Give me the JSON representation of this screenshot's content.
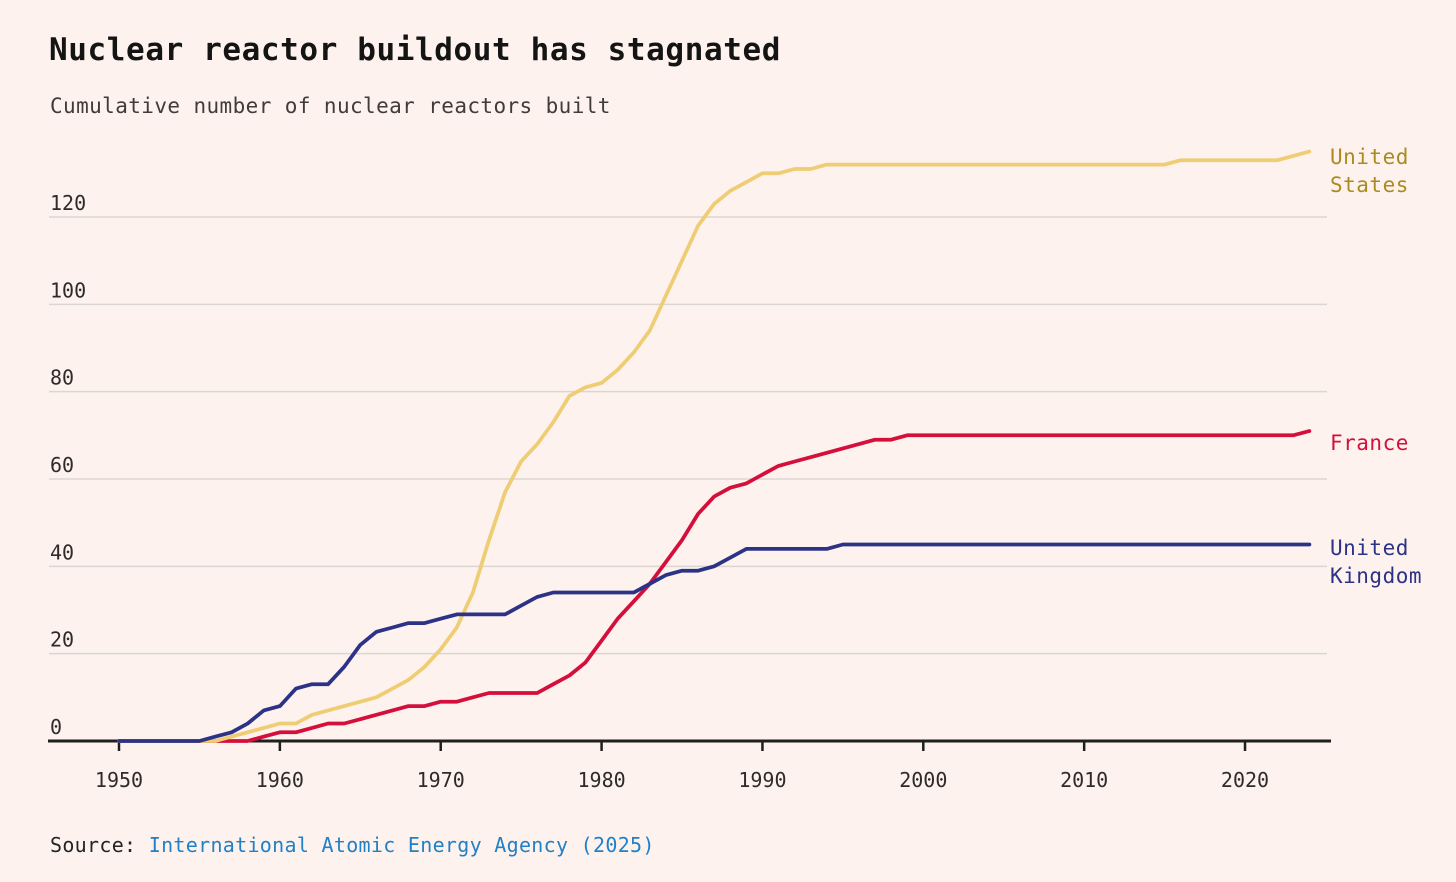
{
  "page": {
    "title": "Nuclear reactor buildout has stagnated",
    "subtitle": "Cumulative number of nuclear reactors built",
    "source_label": "Source:",
    "source_link_text": "International Atomic Energy Agency (2025)"
  },
  "colors": {
    "background": "#fdf2ee",
    "gridline": "#dbd6d1",
    "axis": "#1f1f1f",
    "tick_text": "#2e2b28",
    "title_text": "#141414",
    "link": "#2280c6"
  },
  "chart_data": {
    "type": "line",
    "title": "Nuclear reactor buildout has stagnated",
    "subtitle": "Cumulative number of nuclear reactors built",
    "xlabel": "",
    "ylabel": "Cumulative number of nuclear reactors built",
    "xlim": [
      1945.6,
      2025.4
    ],
    "ylim": [
      0,
      138
    ],
    "x_ticks": [
      1950,
      1960,
      1970,
      1980,
      1990,
      2000,
      2010,
      2020
    ],
    "y_ticks": [
      0,
      20,
      40,
      60,
      80,
      100,
      120
    ],
    "grid": "horizontal",
    "legend_position": "right-of-line-ends",
    "x": [
      1950,
      1951,
      1952,
      1953,
      1954,
      1955,
      1956,
      1957,
      1958,
      1959,
      1960,
      1961,
      1962,
      1963,
      1964,
      1965,
      1966,
      1967,
      1968,
      1969,
      1970,
      1971,
      1972,
      1973,
      1974,
      1975,
      1976,
      1977,
      1978,
      1979,
      1980,
      1981,
      1982,
      1983,
      1984,
      1985,
      1986,
      1987,
      1988,
      1989,
      1990,
      1991,
      1992,
      1993,
      1994,
      1995,
      1996,
      1997,
      1998,
      1999,
      2000,
      2001,
      2002,
      2003,
      2004,
      2005,
      2006,
      2007,
      2008,
      2009,
      2010,
      2011,
      2012,
      2013,
      2014,
      2015,
      2016,
      2017,
      2018,
      2019,
      2020,
      2021,
      2022,
      2023,
      2024
    ],
    "series": [
      {
        "name": "United States",
        "label_lines": [
          "United",
          "States"
        ],
        "color": "#efcd74",
        "label_color": "#ab8b1e",
        "z": 2,
        "values": [
          0,
          0,
          0,
          0,
          0,
          0,
          0,
          1,
          2,
          3,
          4,
          4,
          6,
          7,
          8,
          9,
          10,
          12,
          14,
          17,
          21,
          26,
          34,
          46,
          57,
          64,
          68,
          73,
          79,
          81,
          82,
          85,
          89,
          94,
          102,
          110,
          118,
          123,
          126,
          128,
          130,
          130,
          131,
          131,
          132,
          132,
          132,
          132,
          132,
          132,
          132,
          132,
          132,
          132,
          132,
          132,
          132,
          132,
          132,
          132,
          132,
          132,
          132,
          132,
          132,
          132,
          133,
          133,
          133,
          133,
          133,
          133,
          133,
          134,
          135
        ]
      },
      {
        "name": "France",
        "label_lines": [
          "France"
        ],
        "color": "#d40f3b",
        "label_color": "#d40f3b",
        "z": 1,
        "values": [
          0,
          0,
          0,
          0,
          0,
          0,
          0,
          0,
          0,
          1,
          2,
          2,
          3,
          4,
          4,
          5,
          6,
          7,
          8,
          8,
          9,
          9,
          10,
          11,
          11,
          11,
          11,
          13,
          15,
          18,
          23,
          28,
          32,
          36,
          41,
          46,
          52,
          56,
          58,
          59,
          61,
          63,
          64,
          65,
          66,
          67,
          68,
          69,
          69,
          70,
          70,
          70,
          70,
          70,
          70,
          70,
          70,
          70,
          70,
          70,
          70,
          70,
          70,
          70,
          70,
          70,
          70,
          70,
          70,
          70,
          70,
          70,
          70,
          70,
          71
        ]
      },
      {
        "name": "United Kingdom",
        "label_lines": [
          "United",
          "Kingdom"
        ],
        "color": "#2c3387",
        "label_color": "#2c3387",
        "z": 3,
        "values": [
          0,
          0,
          0,
          0,
          0,
          0,
          1,
          2,
          4,
          7,
          8,
          12,
          13,
          13,
          17,
          22,
          25,
          26,
          27,
          27,
          28,
          29,
          29,
          29,
          29,
          31,
          33,
          34,
          34,
          34,
          34,
          34,
          34,
          36,
          38,
          39,
          39,
          40,
          42,
          44,
          44,
          44,
          44,
          44,
          44,
          45,
          45,
          45,
          45,
          45,
          45,
          45,
          45,
          45,
          45,
          45,
          45,
          45,
          45,
          45,
          45,
          45,
          45,
          45,
          45,
          45,
          45,
          45,
          45,
          45,
          45,
          45,
          45,
          45,
          45
        ]
      }
    ]
  }
}
